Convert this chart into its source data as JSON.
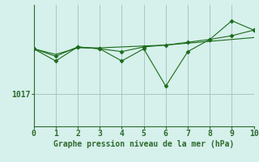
{
  "x": [
    0,
    1,
    2,
    3,
    4,
    5,
    6,
    7,
    8,
    9,
    10
  ],
  "line1": [
    1021.8,
    1020.5,
    1022.0,
    1021.8,
    1020.5,
    1021.8,
    1017.8,
    1021.5,
    1022.8,
    1024.8,
    1023.8
  ],
  "line2": [
    1021.8,
    1021.0,
    1022.0,
    1021.8,
    1021.5,
    1022.0,
    1022.2,
    1022.5,
    1022.8,
    1023.2,
    1023.8
  ],
  "line3": [
    1021.8,
    1021.2,
    1021.9,
    1021.9,
    1022.0,
    1022.1,
    1022.2,
    1022.4,
    1022.6,
    1022.8,
    1023.0
  ],
  "line_color": "#1a6b1a",
  "bg_color": "#d6f0eb",
  "grid_color": "#a8c8c0",
  "xlabel": "Graphe pression niveau de la mer (hPa)",
  "xlim": [
    0,
    10
  ],
  "ylim": [
    1013.5,
    1026.5
  ],
  "ytick_val": 1017,
  "ylabel_tick": "1017",
  "axis_color": "#2d6a2d",
  "tick_fontsize": 7,
  "xlabel_fontsize": 7,
  "marker_size": 2.5
}
